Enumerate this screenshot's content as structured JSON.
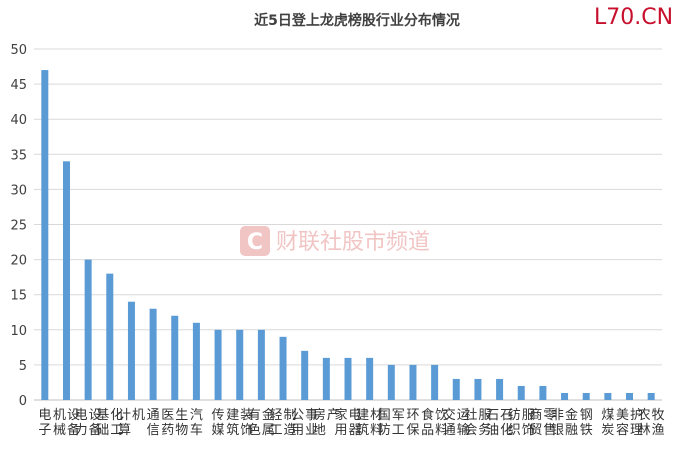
{
  "brand_mark": "L70.CN",
  "watermark": {
    "text": "财联社股市频道",
    "icon": "cls-logo-icon",
    "color": "#f2c5c5"
  },
  "chart_data": {
    "type": "bar",
    "title": "近5日登上龙虎榜股行业分布情况",
    "xlabel": "",
    "ylabel": "",
    "ylim": [
      0,
      50
    ],
    "yticks": [
      0,
      5,
      10,
      15,
      20,
      25,
      30,
      35,
      40,
      45,
      50
    ],
    "grid": true,
    "legend": "none",
    "bar_color": "#5b9bd5",
    "categories": [
      "电子",
      "机械设备",
      "电力设备",
      "基础化工",
      "计算机",
      "通信",
      "医药生物",
      "汽车",
      "传媒",
      "建筑装饰",
      "有色金属",
      "轻工制造",
      "公用事业",
      "房地产",
      "家用电器",
      "建筑材料",
      "国防军工",
      "环保",
      "食品饮料",
      "交通运输",
      "社会服务",
      "石油石化",
      "纺织服饰",
      "商贸零售",
      "非银金融",
      "钢铁",
      "煤炭",
      "美容护理",
      "农林牧渔"
    ],
    "values": [
      47,
      34,
      20,
      18,
      14,
      13,
      12,
      11,
      10,
      10,
      10,
      9,
      7,
      6,
      6,
      6,
      5,
      5,
      5,
      3,
      3,
      3,
      2,
      2,
      1,
      1,
      1,
      1,
      1
    ]
  }
}
